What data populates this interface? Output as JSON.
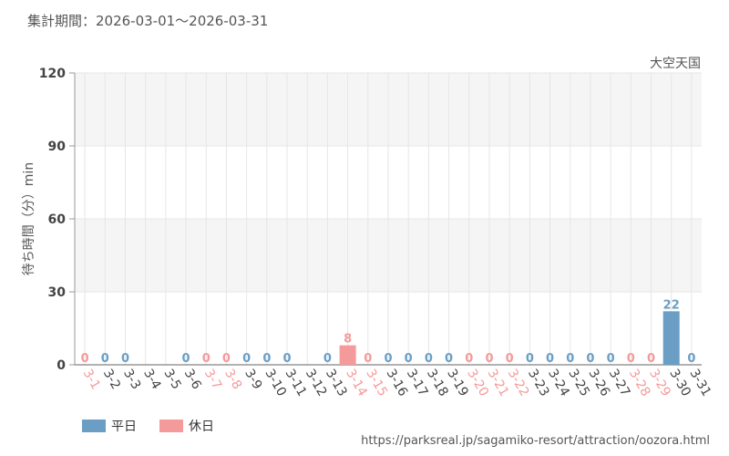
{
  "header": "集計期間：2026-03-01～2026-03-31",
  "footer": "https://parksreal.jp/sagamiko-resort/attraction/oozora.html",
  "chart_data": {
    "type": "bar",
    "subtitle": "大空天国",
    "y_label": "待ち時間（分）min",
    "categories": [
      "3-1",
      "3-2",
      "3-3",
      "3-4",
      "3-5",
      "3-6",
      "3-7",
      "3-8",
      "3-9",
      "3-10",
      "3-11",
      "3-12",
      "3-13",
      "3-14",
      "3-15",
      "3-16",
      "3-17",
      "3-18",
      "3-19",
      "3-20",
      "3-21",
      "3-22",
      "3-23",
      "3-24",
      "3-25",
      "3-26",
      "3-27",
      "3-28",
      "3-29",
      "3-30",
      "3-31"
    ],
    "series": [
      {
        "name": "平日",
        "color": "#6a9ec5",
        "values": [
          null,
          0,
          0,
          null,
          null,
          0,
          null,
          null,
          0,
          0,
          0,
          null,
          0,
          null,
          null,
          0,
          0,
          0,
          0,
          null,
          null,
          null,
          0,
          0,
          0,
          0,
          0,
          null,
          null,
          22,
          0
        ]
      },
      {
        "name": "休日",
        "color": "#f59a9a",
        "values": [
          0,
          null,
          null,
          null,
          null,
          null,
          0,
          0,
          null,
          null,
          null,
          null,
          null,
          8,
          0,
          null,
          null,
          null,
          null,
          0,
          0,
          0,
          null,
          null,
          null,
          null,
          null,
          0,
          0,
          null,
          null
        ]
      }
    ],
    "ylim": [
      0,
      120
    ],
    "yticks": [
      0,
      30,
      60,
      90,
      120
    ],
    "grid": true,
    "legend": "bottom-left"
  }
}
